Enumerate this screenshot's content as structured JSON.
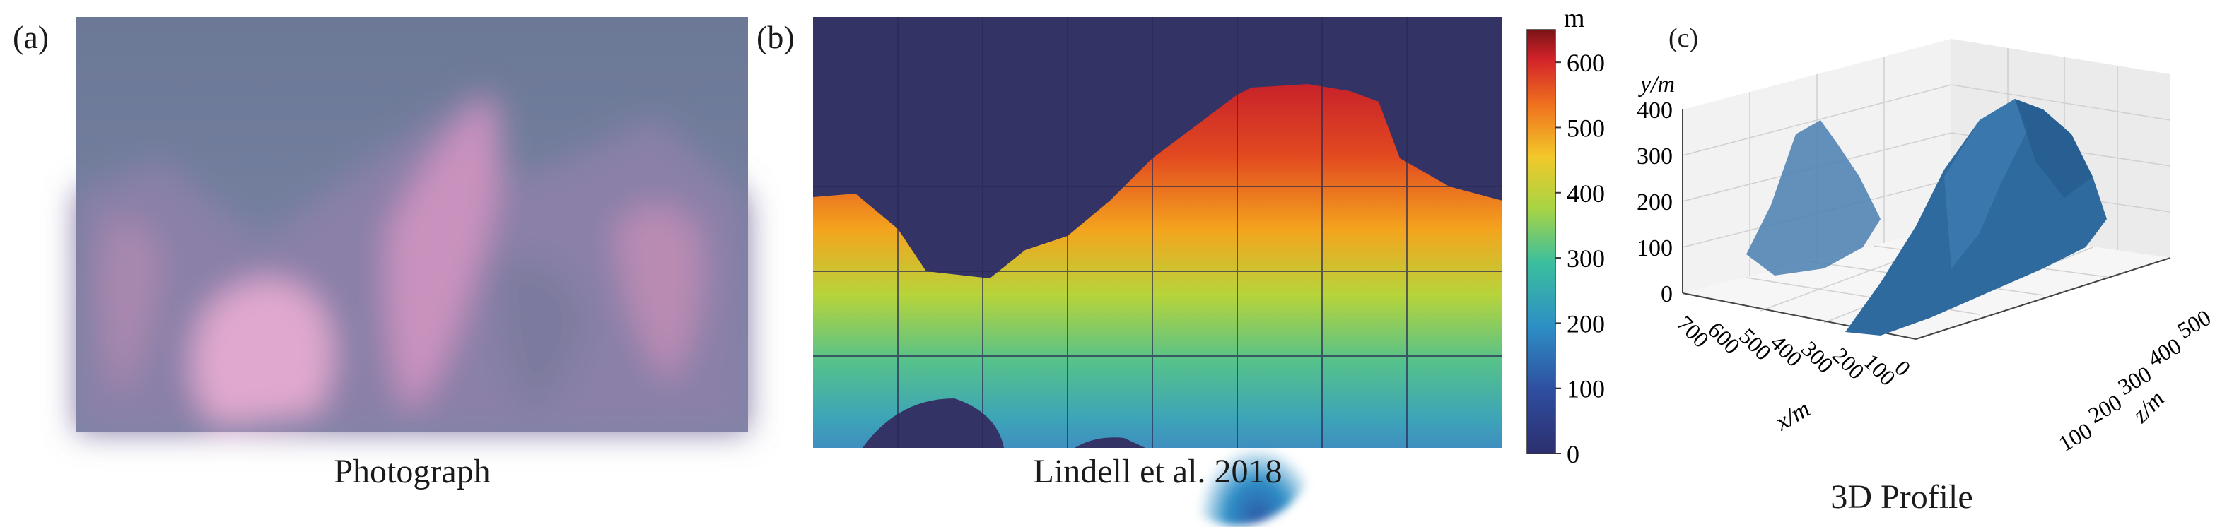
{
  "panels": [
    {
      "letter": "(a)",
      "caption": "Photograph"
    },
    {
      "letter": "(b)",
      "caption": "Lindell et al. 2018"
    },
    {
      "letter": "(c)",
      "caption": "3D Profile"
    }
  ],
  "colorbar": {
    "unit": "m",
    "ticks": [
      "0",
      "100",
      "200",
      "300",
      "400",
      "500",
      "600"
    ],
    "range": [
      0,
      650
    ]
  },
  "profile_3d": {
    "y_axis": {
      "label": "y/m",
      "ticks": [
        "0",
        "100",
        "200",
        "300",
        "400"
      ]
    },
    "x_axis": {
      "label": "x/m",
      "ticks": [
        "700",
        "600",
        "500",
        "400",
        "300",
        "200",
        "100",
        "0"
      ]
    },
    "z_axis": {
      "label": "z/m",
      "ticks": [
        "100",
        "200",
        "300",
        "400",
        "500"
      ]
    }
  },
  "colors": {
    "sky_blue": "#333366",
    "photo_sky": "#6b7896",
    "photo_pink": "#d9a3c8",
    "surface_blue": "#2f6a9e"
  }
}
